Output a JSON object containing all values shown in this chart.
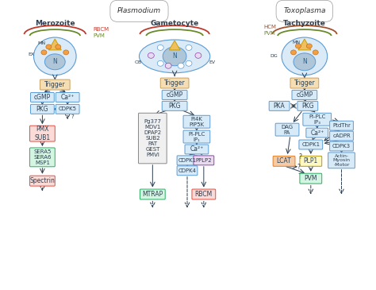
{
  "bg_color": "#ffffff",
  "plasmodium_label": "Plasmodium",
  "toxoplasma_label": "Toxoplasma",
  "col1_title": "Merozoite",
  "col2_title": "Gametocyte",
  "col3_title": "Tachyzoite",
  "arc_red": "#c0392b",
  "arc_green": "#6a8a2a",
  "arc_brown": "#a0522d",
  "box_trigger_fc": "#f5deb3",
  "box_trigger_ec": "#c8a060",
  "box_blue_fc": "#d6eaf8",
  "box_blue_ec": "#5b9bd5",
  "box_salmon_fc": "#fadbd8",
  "box_salmon_ec": "#e74c3c",
  "box_green_fc": "#d5f5e3",
  "box_green_ec": "#27ae60",
  "box_purple_fc": "#e8daef",
  "box_purple_ec": "#8e44ad",
  "box_orange_fc": "#f5cba7",
  "box_orange_ec": "#e67e22",
  "box_yellow_fc": "#fef9c3",
  "box_yellow_ec": "#b7950b",
  "box_gray_fc": "#f0f0f0",
  "box_gray_ec": "#888888",
  "cell_fill": "#dbeaf7",
  "cell_ec": "#5b9bd5",
  "nuc_fill": "#aec6d8",
  "nuc_ec": "#5b9bd5",
  "tri_fc": "#f0c060",
  "tri_ec": "#c8a000",
  "org_fc": "#f5a040",
  "org_ec": "#c07020",
  "org_purple_fc": "#e8daef",
  "org_purple_ec": "#8e44ad",
  "text_color": "#2c3e50",
  "arrow_color": "#2c3e50",
  "rbcm_color": "#c0392b",
  "pvm_color": "#6a8a2a",
  "hcm_color": "#a0522d"
}
